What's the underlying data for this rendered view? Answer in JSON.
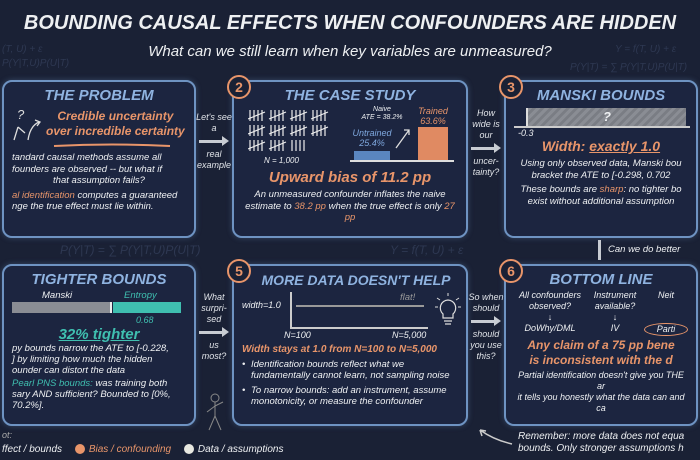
{
  "header": {
    "title": "BOUNDING CAUSAL EFFECTS WHEN CONFOUNDERS ARE HIDDEN",
    "subtitle": "What can we still learn when key variables are unmeasured?"
  },
  "background_equations": [
    "(T, U) + ε",
    "P(Y|T,U)P(U|T)",
    "Y = f(T, U) + ε",
    "P(Y|T) = ∑ P(Y|T,U)P(U|T)",
    "P(Y|T) = ∑ P(Y|T,U)P(U|T)",
    "Y = f(T, U) + ε"
  ],
  "colors": {
    "background": "#1a2135",
    "panel_border": "#6e93c2",
    "title_blue": "#8fb3e0",
    "orange": "#e8956a",
    "teal": "#3fbfb0",
    "data_white": "#e8e8e0"
  },
  "panel1": {
    "title": "THE PROBLEM",
    "icon": "crossroads-question-icon",
    "tagline_1": "Credible uncertainty",
    "tagline_2": "over incredible certainty",
    "body_1": "tandard causal methods assume all",
    "body_2": "founders are observed -- but what if",
    "body_3": "that assumption fails?",
    "body_4_hl": "al identification",
    "body_4": " computes a guaranteed",
    "body_5": "nge the true effect must lie within."
  },
  "conn1": {
    "top": "Let's see a",
    "bottom": "real example"
  },
  "panel2": {
    "number": "2",
    "title": "THE CASE STUDY",
    "tally_label": "N = 1,000",
    "naive_label": "Naive",
    "naive_value": "ATE = 38.2%",
    "untrained_label": "Untrained",
    "untrained_value": "25.4%",
    "trained_label": "Trained",
    "trained_value": "63.6%",
    "headline": "Upward bias of 11.2 pp",
    "body_1": "An unmeasured confounder inflates the naive",
    "body_2a": "estimate to ",
    "body_2b": "38.2 pp",
    "body_2c": " when the true effect is only ",
    "body_2d": "27 pp"
  },
  "conn2": {
    "top": "How wide is our",
    "bottom": "uncer-tainty?"
  },
  "panel3": {
    "number": "3",
    "title": "MANSKI BOUNDS",
    "bar_mark": "?",
    "lower": "-0.3",
    "headline_a": "Width: ",
    "headline_b": "exactly 1.0",
    "body_1": "Using only observed data, Manski bou",
    "body_2": "bracket the ATE to [-0.298, 0.702",
    "body_3a": "These bounds are ",
    "body_3b": "sharp",
    "body_3c": ": no tighter bo",
    "body_4": "exist without additional assumption"
  },
  "conn3": {
    "label": "Can we do better"
  },
  "panel4": {
    "title": "TIGHTER BOUNDS",
    "manski_label": "Manski",
    "entropy_label": "Entropy",
    "entropy_value": "0.68",
    "headline": "32% tighter",
    "body_1": "py bounds narrow the ATE to [-0.228,",
    "body_2": "] by limiting how much the hidden",
    "body_3": "ounder can distort the data",
    "body_4_hl": "Pearl PNS bounds:",
    "body_4": " was training both",
    "body_5": "sary AND sufficient? Bounded to [0%, 70.2%]."
  },
  "conn4": {
    "top": "What surpri-sed",
    "bottom": "us most?"
  },
  "panel5": {
    "number": "5",
    "title": "MORE DATA DOESN'T HELP",
    "y_label": "width=1.0",
    "flat_label": "flat!",
    "x_start": "N=100",
    "x_end": "N=5,000",
    "icon": "lightbulb-icon",
    "headline": "Width stays at 1.0 from N=100 to N=5,000",
    "bullet_1a": "Identification bounds reflect what we",
    "bullet_1b": "fundamentally cannot learn, not sampling noise",
    "bullet_2a": "To narrow bounds: add an instrument, assume",
    "bullet_2b": "monotonicity, or measure the confounder"
  },
  "conn5": {
    "top": "So when should",
    "bottom": "should you use this?"
  },
  "panel6": {
    "number": "6",
    "title": "BOTTOM LINE",
    "q1a": "All confounders",
    "q1b": "observed?",
    "a1": "DoWhy/DML",
    "q2a": "Instrument",
    "q2b": "available?",
    "a2": "IV",
    "q3": "Neit",
    "a3": "Parti",
    "headline_1": "Any claim of a 75 pp bene",
    "headline_2": "is inconsistent with the d",
    "body_1": "Partial identification doesn't give you THE ar",
    "body_2": "it tells you honestly what the data can and ca"
  },
  "footer": {
    "remember_1": "Remember: more data does not equa",
    "remember_2": "bounds. Only stronger assumptions h"
  },
  "legend": {
    "title": "ot:",
    "items": [
      {
        "label": "ffect / bounds",
        "color": "#3fbfb0"
      },
      {
        "label": "Bias / confounding",
        "color": "#e8956a"
      },
      {
        "label": "Data / assumptions",
        "color": "#e8e8e0"
      }
    ]
  }
}
